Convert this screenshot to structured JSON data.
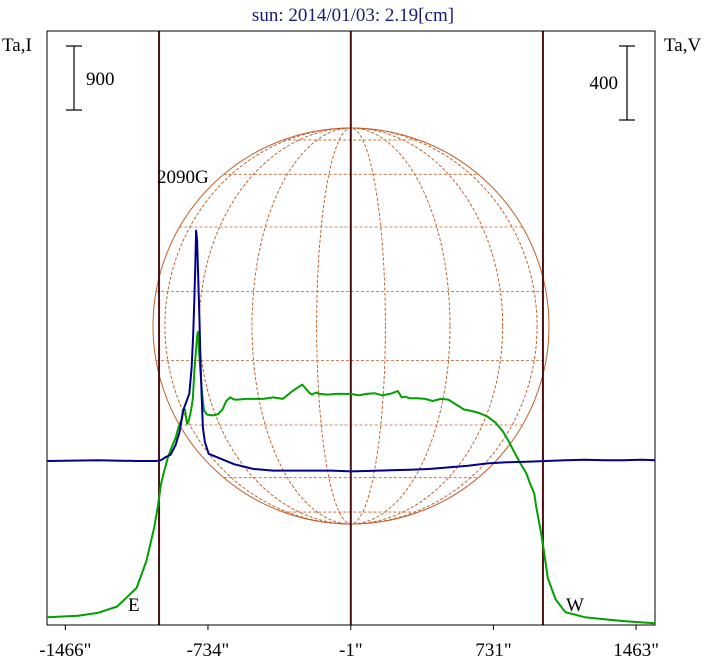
{
  "title": "sun: 2014/01/03: 2.19[cm]",
  "colors": {
    "title": "#1a1a7a",
    "frame": "#000000",
    "markers": "#4a1010",
    "grid": "#c0602a",
    "intensity": "#00a000",
    "polarization": "#00008c"
  },
  "chart_data": {
    "type": "line",
    "title": "sun: 2014/01/03: 2.19[cm]",
    "left_axis_label": "Ta,I",
    "right_axis_label": "Ta,V",
    "left_scale_bar": "900",
    "right_scale_bar": "400",
    "xlim": [
      -1560,
      1560
    ],
    "x_ticks": [
      {
        "value": -1466,
        "label": "-1466\""
      },
      {
        "value": -734,
        "label": "-734\""
      },
      {
        "value": -1,
        "label": "-1\""
      },
      {
        "value": 731,
        "label": "731\""
      },
      {
        "value": 1463,
        "label": "1463\""
      }
    ],
    "markers": [
      {
        "x": -985,
        "label": "E"
      },
      {
        "x": -1,
        "label": ""
      },
      {
        "x": 985,
        "label": "W"
      }
    ],
    "annotation": {
      "text": "2090G",
      "x": -800
    },
    "solar_disk": {
      "radius_arcsec": 965,
      "grid": true
    },
    "y_scale": {
      "intensity_per_level": 900,
      "polarization_per_level": 400
    },
    "series": [
      {
        "key": "intensity",
        "x": [
          -1560,
          -1400,
          -1300,
          -1200,
          -1100,
          -1050,
          -1010,
          -990,
          -975,
          -960,
          -940,
          -920,
          -900,
          -885,
          -870,
          -862,
          -852,
          -842,
          -832,
          -822,
          -812,
          -803,
          -795,
          -790,
          -786,
          -782,
          -775,
          -765,
          -755,
          -740,
          -720,
          -700,
          -680,
          -660,
          -640,
          -620,
          -600,
          -580,
          -540,
          -500,
          -450,
          -400,
          -350,
          -300,
          -250,
          -215,
          -200,
          -180,
          -160,
          -120,
          -80,
          -40,
          0,
          40,
          80,
          120,
          160,
          200,
          240,
          260,
          280,
          300,
          340,
          380,
          420,
          460,
          500,
          540,
          580,
          620,
          660,
          700,
          740,
          780,
          810,
          840,
          870,
          900,
          920,
          940,
          950,
          960,
          975,
          990,
          1010,
          1050,
          1100,
          1200,
          1300,
          1400,
          1500,
          1560
        ],
        "values": [
          110,
          130,
          170,
          260,
          520,
          900,
          1370,
          1690,
          1980,
          2150,
          2350,
          2500,
          2630,
          2780,
          2890,
          3020,
          3030,
          2830,
          2880,
          3000,
          3180,
          3600,
          3880,
          4060,
          4120,
          3970,
          3650,
          3290,
          3020,
          2960,
          2950,
          2950,
          2970,
          3030,
          3150,
          3200,
          3170,
          3170,
          3180,
          3180,
          3180,
          3200,
          3180,
          3290,
          3380,
          3270,
          3240,
          3270,
          3250,
          3240,
          3250,
          3250,
          3250,
          3230,
          3250,
          3260,
          3230,
          3250,
          3290,
          3200,
          3210,
          3190,
          3190,
          3180,
          3150,
          3180,
          3170,
          3100,
          3030,
          3010,
          2980,
          2930,
          2850,
          2720,
          2580,
          2420,
          2270,
          2130,
          1980,
          1850,
          1670,
          1520,
          1300,
          1040,
          660,
          360,
          180,
          110,
          80,
          55,
          35,
          25
        ]
      },
      {
        "key": "polarization",
        "x": [
          -1560,
          -1300,
          -1100,
          -1000,
          -975,
          -950,
          -925,
          -900,
          -880,
          -860,
          -845,
          -830,
          -818,
          -810,
          -804,
          -799,
          -795,
          -790,
          -784,
          -778,
          -772,
          -766,
          -760,
          -750,
          -730,
          -700,
          -650,
          -600,
          -550,
          -500,
          -450,
          -400,
          -300,
          -200,
          -100,
          0,
          100,
          200,
          300,
          400,
          500,
          600,
          700,
          800,
          900,
          1000,
          1100,
          1200,
          1300,
          1400,
          1500,
          1560
        ],
        "values": [
          0,
          5,
          0,
          0,
          5,
          25,
          40,
          100,
          180,
          320,
          370,
          420,
          580,
          790,
          1000,
          1220,
          1440,
          1380,
          1150,
          900,
          600,
          400,
          210,
          120,
          45,
          30,
          5,
          -20,
          -35,
          -50,
          -55,
          -60,
          -60,
          -60,
          -60,
          -65,
          -62,
          -58,
          -55,
          -50,
          -40,
          -30,
          -15,
          -8,
          -5,
          0,
          5,
          8,
          5,
          5,
          8,
          5
        ]
      }
    ]
  }
}
